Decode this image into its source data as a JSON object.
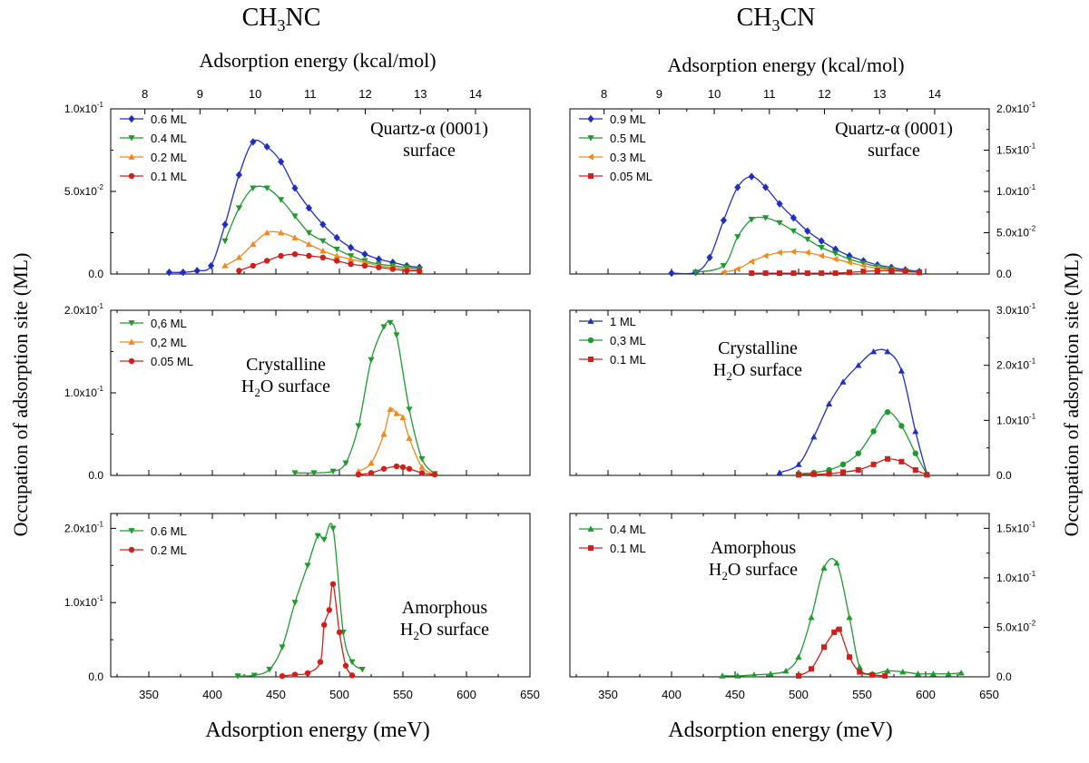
{
  "figure": {
    "columns": [
      {
        "title_main": "CH",
        "title_sub": "3",
        "title_tail": "NC"
      },
      {
        "title_main": "CH",
        "title_sub": "3",
        "title_tail": "CN"
      }
    ],
    "top_axis_label": "Adsorption energy (kcal/mol)",
    "bottom_axis_label": "Adsorption energy (meV)",
    "left_axis_label": "Occupation of adsorption site (ML)",
    "right_axis_label": "Occupation of adsorption site (ML)",
    "top_ticks": [
      "8",
      "9",
      "10",
      "11",
      "12",
      "13",
      "14"
    ],
    "bottom_ticks": [
      "350",
      "400",
      "450",
      "500",
      "550",
      "600",
      "650"
    ]
  },
  "chart_data": [
    {
      "type": "line",
      "panel": "CH3NC quartz",
      "surface_lines": [
        [
          "Quartz-α (0001)"
        ],
        [
          "surface"
        ]
      ],
      "xlim": [
        320,
        650
      ],
      "ylim": [
        0,
        0.1
      ],
      "yticks": [
        {
          "v": 0,
          "m": "0.0",
          "e": ""
        },
        {
          "v": 0.05,
          "m": "5.0x10",
          "e": "-2"
        },
        {
          "v": 0.1,
          "m": "1.0x10",
          "e": "-1"
        }
      ],
      "series": [
        {
          "name": "0.6 ML",
          "color": "#1f2fbf",
          "marker": "diamond",
          "x": [
            366,
            377,
            388,
            399,
            410,
            421,
            432,
            443,
            454,
            465,
            476,
            487,
            498,
            509,
            520,
            531,
            542,
            553,
            563
          ],
          "y": [
            0.001,
            0.001,
            0.002,
            0.005,
            0.03,
            0.06,
            0.08,
            0.077,
            0.068,
            0.052,
            0.04,
            0.03,
            0.022,
            0.016,
            0.012,
            0.009,
            0.007,
            0.005,
            0.004
          ]
        },
        {
          "name": "0.4 ML",
          "color": "#1f9a2f",
          "marker": "tri-down",
          "x": [
            410,
            421,
            432,
            443,
            454,
            465,
            476,
            487,
            498,
            509,
            520,
            531,
            542,
            553,
            563
          ],
          "y": [
            0.02,
            0.04,
            0.052,
            0.052,
            0.045,
            0.035,
            0.025,
            0.02,
            0.015,
            0.011,
            0.008,
            0.006,
            0.005,
            0.004,
            0.003
          ]
        },
        {
          "name": "0.2 ML",
          "color": "#f08a1c",
          "marker": "tri-up",
          "x": [
            410,
            421,
            432,
            443,
            454,
            465,
            476,
            487,
            498,
            509,
            520,
            531,
            542,
            553,
            563
          ],
          "y": [
            0.005,
            0.01,
            0.018,
            0.025,
            0.025,
            0.022,
            0.018,
            0.014,
            0.011,
            0.009,
            0.007,
            0.005,
            0.004,
            0.003,
            0.002
          ]
        },
        {
          "name": "0.1 ML",
          "color": "#d0201c",
          "marker": "circle",
          "x": [
            421,
            432,
            443,
            454,
            465,
            476,
            487,
            498,
            509,
            520,
            531,
            542,
            553,
            563
          ],
          "y": [
            0.002,
            0.005,
            0.008,
            0.011,
            0.012,
            0.011,
            0.01,
            0.008,
            0.006,
            0.005,
            0.004,
            0.003,
            0.002,
            0.002
          ]
        }
      ]
    },
    {
      "type": "line",
      "panel": "CH3CN quartz",
      "surface_lines": [
        [
          "Quartz-α (0001)"
        ],
        [
          "surface"
        ]
      ],
      "xlim": [
        320,
        650
      ],
      "ylim": [
        0,
        0.2
      ],
      "yticks": [
        {
          "v": 0,
          "m": "0.0",
          "e": ""
        },
        {
          "v": 0.05,
          "m": "5.0x10",
          "e": "-2"
        },
        {
          "v": 0.1,
          "m": "1.0x10",
          "e": "-1"
        },
        {
          "v": 0.15,
          "m": "1.5x10",
          "e": "-1"
        },
        {
          "v": 0.2,
          "m": "2.0x10",
          "e": "-1"
        }
      ],
      "series": [
        {
          "name": "0.9 ML",
          "color": "#1f2fbf",
          "marker": "diamond",
          "x": [
            400,
            419,
            430,
            441,
            452,
            463,
            474,
            485,
            496,
            507,
            518,
            529,
            540,
            551,
            562,
            573,
            584,
            595
          ],
          "y": [
            0.001,
            0.002,
            0.02,
            0.065,
            0.105,
            0.118,
            0.105,
            0.085,
            0.068,
            0.052,
            0.04,
            0.03,
            0.022,
            0.016,
            0.011,
            0.008,
            0.005,
            0.003
          ]
        },
        {
          "name": "0.5 ML",
          "color": "#1f9a2f",
          "marker": "tri-down",
          "x": [
            419,
            441,
            452,
            463,
            474,
            485,
            496,
            507,
            518,
            529,
            540,
            551,
            562,
            573,
            584,
            595
          ],
          "y": [
            0.002,
            0.01,
            0.045,
            0.066,
            0.068,
            0.062,
            0.052,
            0.042,
            0.032,
            0.025,
            0.018,
            0.013,
            0.009,
            0.006,
            0.004,
            0.002
          ]
        },
        {
          "name": "0.3 ML",
          "color": "#f08a1c",
          "marker": "tri-left",
          "x": [
            441,
            452,
            463,
            474,
            485,
            496,
            507,
            518,
            529,
            540,
            551,
            562,
            573,
            584,
            595
          ],
          "y": [
            0.002,
            0.006,
            0.015,
            0.022,
            0.026,
            0.027,
            0.026,
            0.022,
            0.018,
            0.014,
            0.01,
            0.007,
            0.005,
            0.003,
            0.002
          ]
        },
        {
          "name": "0.05 ML",
          "color": "#d0201c",
          "marker": "square",
          "x": [
            463,
            474,
            485,
            496,
            507,
            518,
            529,
            540,
            551,
            562,
            573,
            584,
            595
          ],
          "y": [
            0.001,
            0.001,
            0.001,
            0.001,
            0.001,
            0.001,
            0.001,
            0.002,
            0.003,
            0.004,
            0.004,
            0.003,
            0.002
          ]
        }
      ]
    },
    {
      "type": "line",
      "panel": "CH3NC crystalline",
      "surface_lines": [
        [
          "Crystalline"
        ],
        [
          "H",
          "2",
          "O surface"
        ]
      ],
      "xlim": [
        320,
        650
      ],
      "ylim": [
        0,
        0.2
      ],
      "yticks": [
        {
          "v": 0,
          "m": "0.0",
          "e": ""
        },
        {
          "v": 0.1,
          "m": "1.0x10",
          "e": "-1"
        },
        {
          "v": 0.2,
          "m": "2.0x10",
          "e": "-1"
        }
      ],
      "series": [
        {
          "name": "0,6 ML",
          "color": "#1f9a2f",
          "marker": "tri-down",
          "x": [
            465,
            480,
            495,
            505,
            515,
            525,
            535,
            540,
            545,
            555,
            565,
            575
          ],
          "y": [
            0.003,
            0.003,
            0.005,
            0.015,
            0.06,
            0.14,
            0.18,
            0.185,
            0.17,
            0.08,
            0.02,
            0.002
          ]
        },
        {
          "name": "0,2 ML",
          "color": "#f08a1c",
          "marker": "tri-up",
          "x": [
            515,
            525,
            535,
            540,
            545,
            550,
            555,
            565,
            575
          ],
          "y": [
            0.005,
            0.015,
            0.05,
            0.08,
            0.075,
            0.07,
            0.045,
            0.01,
            0.002
          ]
        },
        {
          "name": "0.05 ML",
          "color": "#d0201c",
          "marker": "circle",
          "x": [
            515,
            525,
            535,
            545,
            550,
            555,
            565,
            575
          ],
          "y": [
            0.001,
            0.003,
            0.008,
            0.011,
            0.01,
            0.008,
            0.003,
            0.001
          ]
        }
      ]
    },
    {
      "type": "line",
      "panel": "CH3CN crystalline",
      "surface_lines": [
        [
          "Crystalline"
        ],
        [
          "H",
          "2",
          "O surface"
        ]
      ],
      "xlim": [
        320,
        650
      ],
      "ylim": [
        0,
        0.3
      ],
      "yticks": [
        {
          "v": 0,
          "m": "0.0",
          "e": ""
        },
        {
          "v": 0.1,
          "m": "1.0x10",
          "e": "-1"
        },
        {
          "v": 0.2,
          "m": "2.0x10",
          "e": "-1"
        },
        {
          "v": 0.3,
          "m": "3.0x10",
          "e": "-1"
        }
      ],
      "series": [
        {
          "name": "1 ML",
          "color": "#1f2fbf",
          "marker": "tri-up",
          "x": [
            485,
            500,
            512,
            524,
            535,
            547,
            559,
            570,
            581,
            592,
            601
          ],
          "y": [
            0.005,
            0.02,
            0.07,
            0.13,
            0.17,
            0.2,
            0.225,
            0.225,
            0.19,
            0.08,
            0.002
          ]
        },
        {
          "name": "0,3 ML",
          "color": "#1f9a2f",
          "marker": "circle",
          "x": [
            500,
            512,
            524,
            535,
            547,
            559,
            570,
            581,
            592,
            601
          ],
          "y": [
            0.003,
            0.005,
            0.01,
            0.02,
            0.04,
            0.08,
            0.115,
            0.09,
            0.04,
            0.002
          ]
        },
        {
          "name": "0.1 ML",
          "color": "#d0201c",
          "marker": "square",
          "x": [
            500,
            512,
            524,
            535,
            547,
            559,
            570,
            581,
            592,
            601
          ],
          "y": [
            0.001,
            0.002,
            0.003,
            0.006,
            0.01,
            0.02,
            0.03,
            0.025,
            0.01,
            0.001
          ]
        }
      ]
    },
    {
      "type": "line",
      "panel": "CH3NC amorphous",
      "surface_lines": [
        [
          "Amorphous"
        ],
        [
          "H",
          "2",
          "O surface"
        ]
      ],
      "xlim": [
        320,
        650
      ],
      "ylim": [
        0,
        0.22
      ],
      "yticks": [
        {
          "v": 0,
          "m": "0.0",
          "e": ""
        },
        {
          "v": 0.1,
          "m": "1.0x10",
          "e": "-1"
        },
        {
          "v": 0.2,
          "m": "2.0x10",
          "e": "-1"
        }
      ],
      "series": [
        {
          "name": "0.6 ML",
          "color": "#1f9a2f",
          "marker": "tri-down",
          "x": [
            420,
            433,
            445,
            455,
            465,
            475,
            483,
            488,
            495,
            503,
            510,
            518
          ],
          "y": [
            0.001,
            0.002,
            0.01,
            0.04,
            0.1,
            0.15,
            0.19,
            0.185,
            0.2,
            0.06,
            0.02,
            0.01
          ]
        },
        {
          "name": "0.2 ML",
          "color": "#d0201c",
          "marker": "circle",
          "x": [
            455,
            465,
            475,
            485,
            488,
            492,
            495,
            500,
            505,
            510
          ],
          "y": [
            0.001,
            0.003,
            0.005,
            0.02,
            0.07,
            0.09,
            0.125,
            0.06,
            0.015,
            0.002
          ]
        }
      ]
    },
    {
      "type": "line",
      "panel": "CH3CN amorphous",
      "surface_lines": [
        [
          "Amorphous"
        ],
        [
          "H",
          "2",
          "O surface"
        ]
      ],
      "xlim": [
        320,
        650
      ],
      "ylim": [
        0,
        0.165
      ],
      "yticks": [
        {
          "v": 0,
          "m": "0.0",
          "e": ""
        },
        {
          "v": 0.05,
          "m": "5.0x10",
          "e": "-2"
        },
        {
          "v": 0.1,
          "m": "1.0x10",
          "e": "-1"
        },
        {
          "v": 0.15,
          "m": "1.5x10",
          "e": "-1"
        }
      ],
      "series": [
        {
          "name": "0.4 ML",
          "color": "#1f9a2f",
          "marker": "tri-up",
          "x": [
            440,
            452,
            465,
            478,
            490,
            500,
            510,
            520,
            530,
            540,
            548,
            558,
            570,
            582,
            594,
            606,
            618,
            628
          ],
          "y": [
            0.001,
            0.001,
            0.002,
            0.003,
            0.006,
            0.02,
            0.06,
            0.11,
            0.115,
            0.06,
            0.01,
            0.003,
            0.006,
            0.005,
            0.003,
            0.003,
            0.003,
            0.004
          ]
        },
        {
          "name": "0.1 ML",
          "color": "#d0201c",
          "marker": "square",
          "x": [
            500,
            510,
            520,
            528,
            532,
            540,
            548,
            558,
            568
          ],
          "y": [
            0.001,
            0.008,
            0.03,
            0.045,
            0.048,
            0.02,
            0.005,
            0.002,
            0.001
          ]
        }
      ]
    }
  ]
}
